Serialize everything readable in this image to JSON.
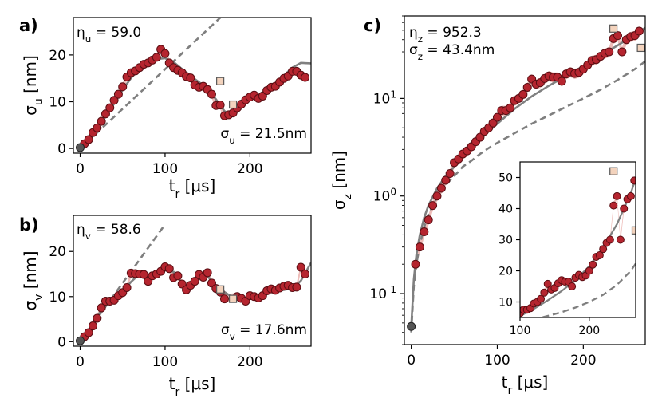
{
  "chart_data": [
    {
      "id": "a",
      "type": "scatter",
      "panel_label": "a)",
      "xlabel": "t_r [μs]",
      "ylabel": "σ_u [nm]",
      "xlim": [
        -8,
        272
      ],
      "ylim": [
        -1,
        28
      ],
      "xticks": [
        0,
        100,
        200
      ],
      "yticks": [
        0,
        10,
        20
      ],
      "annotation_eta": "η_u = 59.0",
      "annotation_sigma": "σ_u = 21.5nm",
      "start_point": [
        0,
        0.2
      ],
      "series": [
        {
          "name": "data",
          "x": [
            5,
            10,
            15,
            20,
            25,
            30,
            35,
            40,
            45,
            50,
            55,
            60,
            65,
            70,
            75,
            80,
            85,
            90,
            95,
            100,
            105,
            110,
            115,
            120,
            125,
            130,
            135,
            140,
            145,
            150,
            155,
            160,
            165,
            170,
            175,
            180,
            185,
            190,
            195,
            200,
            205,
            210,
            215,
            220,
            225,
            230,
            235,
            240,
            245,
            250,
            255,
            260,
            265
          ],
          "y": [
            1.0,
            1.9,
            3.4,
            4.4,
            5.8,
            7.4,
            8.7,
            10.3,
            11.6,
            13.2,
            15.3,
            16.2,
            16.6,
            17.3,
            18.0,
            18.3,
            18.9,
            19.5,
            21.2,
            20.3,
            18.3,
            17.3,
            16.7,
            16.2,
            15.4,
            15.1,
            13.6,
            13.1,
            13.3,
            12.6,
            11.6,
            9.2,
            9.3,
            7.0,
            7.2,
            7.6,
            8.7,
            9.5,
            10.4,
            11.0,
            11.4,
            10.7,
            11.2,
            12.4,
            13.1,
            13.3,
            14.2,
            15.0,
            15.5,
            16.5,
            16.5,
            15.7,
            15.2
          ]
        },
        {
          "name": "outliers",
          "x": [
            165,
            180
          ],
          "y": [
            14.4,
            9.4
          ]
        },
        {
          "name": "model",
          "x": [
            0,
            10,
            20,
            30,
            40,
            50,
            60,
            70,
            80,
            90,
            100,
            110,
            120,
            130,
            140,
            150,
            160,
            170,
            180,
            190,
            200,
            210,
            220,
            230,
            240,
            250,
            260,
            272
          ],
          "y": [
            0,
            2.0,
            4.2,
            6.8,
            9.6,
            12.5,
            15.1,
            17.0,
            18.3,
            19.1,
            19.3,
            18.5,
            17.0,
            15.5,
            14.2,
            12.8,
            10.5,
            8.0,
            6.9,
            8.6,
            10.6,
            11.5,
            12.6,
            14.0,
            15.6,
            17.3,
            18.3,
            18.2
          ]
        },
        {
          "name": "linear",
          "x": [
            0,
            180
          ],
          "y": [
            0,
            30.5
          ]
        }
      ]
    },
    {
      "id": "b",
      "type": "scatter",
      "panel_label": "b)",
      "xlabel": "t_r [μs]",
      "ylabel": "σ_v [nm]",
      "xlim": [
        -8,
        272
      ],
      "ylim": [
        -1,
        28
      ],
      "xticks": [
        0,
        100,
        200
      ],
      "yticks": [
        0,
        10,
        20
      ],
      "annotation_eta": "η_v = 58.6",
      "annotation_sigma": "σ_v = 17.6nm",
      "start_point": [
        0,
        0.2
      ],
      "series": [
        {
          "name": "data",
          "x": [
            5,
            10,
            15,
            20,
            25,
            30,
            35,
            40,
            45,
            50,
            55,
            60,
            65,
            70,
            75,
            80,
            85,
            90,
            95,
            100,
            105,
            110,
            115,
            120,
            125,
            130,
            135,
            140,
            145,
            150,
            155,
            160,
            165,
            170,
            185,
            190,
            195,
            200,
            205,
            210,
            215,
            220,
            225,
            230,
            235,
            240,
            245,
            250,
            255,
            260,
            265
          ],
          "y": [
            1.1,
            2.0,
            3.5,
            5.2,
            7.5,
            9.0,
            9.0,
            9.2,
            10.2,
            10.9,
            12.0,
            15.2,
            15.1,
            15.0,
            14.9,
            13.4,
            14.6,
            15.0,
            15.6,
            16.6,
            16.2,
            14.2,
            14.6,
            12.8,
            11.5,
            12.5,
            13.4,
            14.9,
            14.3,
            15.3,
            13.0,
            11.8,
            11.0,
            9.5,
            10.0,
            9.6,
            9.0,
            10.2,
            10.0,
            9.7,
            10.2,
            11.3,
            11.7,
            11.4,
            11.9,
            12.3,
            12.5,
            12.0,
            12.1,
            16.5,
            15.0
          ]
        },
        {
          "name": "outliers",
          "x": [
            165,
            180
          ],
          "y": [
            11.6,
            9.5
          ]
        },
        {
          "name": "model",
          "x": [
            0,
            10,
            20,
            30,
            40,
            50,
            60,
            70,
            80,
            90,
            100,
            110,
            120,
            130,
            140,
            150,
            160,
            170,
            180,
            190,
            200,
            210,
            220,
            230,
            240,
            250,
            260,
            272
          ],
          "y": [
            0,
            2.5,
            5.5,
            8.3,
            9.8,
            11.0,
            13.3,
            15.0,
            14.9,
            14.5,
            15.8,
            15.5,
            13.0,
            12.0,
            13.8,
            14.5,
            12.5,
            11.0,
            9.8,
            9.6,
            9.7,
            10.2,
            10.8,
            11.2,
            11.5,
            11.8,
            13.5,
            17.5
          ]
        },
        {
          "name": "linear",
          "x": [
            0,
            100
          ],
          "y": [
            0,
            26.0
          ]
        }
      ]
    },
    {
      "id": "c",
      "type": "scatter",
      "panel_label": "c)",
      "xlabel": "t_r [μs]",
      "ylabel": "σ_z [nm]",
      "yscale": "log",
      "xlim": [
        -8,
        272
      ],
      "ylim": [
        0.03,
        70
      ],
      "xticks": [
        0,
        100,
        200
      ],
      "yticks": [
        0.1,
        1,
        10
      ],
      "ytick_labels": [
        "10",
        "10",
        "10"
      ],
      "ytick_exponents": [
        "-1",
        "0",
        "1"
      ],
      "annotation_eta": "η_z = 952.3",
      "annotation_sigma": "σ_z = 43.4nm",
      "start_point": [
        0,
        0.046
      ],
      "series": [
        {
          "name": "data",
          "x": [
            5,
            10,
            15,
            20,
            25,
            30,
            35,
            40,
            45,
            50,
            55,
            60,
            65,
            70,
            75,
            80,
            85,
            90,
            95,
            100,
            105,
            110,
            115,
            120,
            125,
            130,
            135,
            140,
            145,
            150,
            155,
            160,
            165,
            170,
            175,
            180,
            185,
            190,
            195,
            200,
            205,
            210,
            215,
            220,
            225,
            230,
            235,
            240,
            245,
            250,
            255,
            260,
            265
          ],
          "y": [
            0.2,
            0.3,
            0.43,
            0.57,
            0.8,
            1.0,
            1.2,
            1.45,
            1.7,
            2.2,
            2.4,
            2.7,
            2.9,
            3.2,
            3.6,
            4.0,
            4.6,
            5.0,
            5.6,
            6.4,
            7.5,
            7.5,
            8.0,
            9.5,
            10.0,
            11.0,
            13.0,
            15.8,
            14.0,
            14.5,
            16.0,
            17.0,
            16.5,
            16.5,
            15.0,
            17.8,
            18.7,
            18.0,
            18.5,
            20.0,
            22.0,
            24.5,
            25.0,
            27.0,
            29.0,
            30.0,
            41.0,
            44.0,
            30.0,
            40.0,
            43.0,
            44.0,
            49.0
          ]
        },
        {
          "name": "outliers",
          "x": [
            235,
            267
          ],
          "y": [
            52,
            33
          ]
        },
        {
          "name": "model",
          "x": [
            0,
            3,
            6,
            10,
            15,
            20,
            30,
            40,
            50,
            60,
            70,
            80,
            90,
            100,
            120,
            140,
            160,
            180,
            200,
            220,
            240,
            260,
            272
          ],
          "y": [
            0.046,
            0.14,
            0.25,
            0.4,
            0.6,
            0.8,
            1.2,
            1.6,
            2.0,
            2.5,
            3.1,
            3.8,
            4.6,
            5.5,
            7.8,
            10.5,
            13.5,
            17.0,
            21.5,
            27.5,
            35.0,
            45.0,
            53.0
          ]
        },
        {
          "name": "linear",
          "x": [
            0,
            3,
            6,
            10,
            15,
            20,
            30,
            40,
            50,
            60,
            70,
            80,
            90,
            100,
            120,
            140,
            160,
            180,
            200,
            220,
            240,
            260,
            272
          ],
          "y": [
            0.04,
            0.12,
            0.2,
            0.32,
            0.48,
            0.65,
            0.97,
            1.3,
            1.6,
            2.0,
            2.3,
            2.7,
            3.1,
            3.5,
            4.4,
            5.5,
            6.7,
            8.2,
            10.0,
            12.3,
            15.5,
            20.0,
            24.0
          ]
        }
      ],
      "inset": {
        "xlim": [
          100,
          267
        ],
        "ylim": [
          5,
          55
        ],
        "xticks": [
          100,
          200
        ],
        "yticks": [
          10,
          20,
          30,
          40,
          50
        ]
      }
    }
  ],
  "colors": {
    "marker_fill": "#b5252f",
    "marker_edge": "#5a0d12",
    "band": "#e8a7a2",
    "model_line": "#808080",
    "linear_line": "#7f7f7f",
    "outlier_fill": "#f3d3bd",
    "outlier_edge": "#5a5a5a",
    "start_fill": "#555555"
  }
}
